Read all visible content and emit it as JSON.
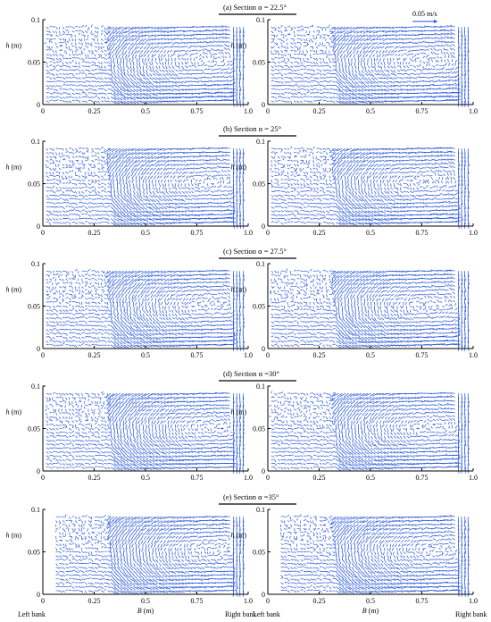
{
  "figure": {
    "scale_label": "0.05 m/s",
    "bottom_labels": {
      "left_bank_1": "Left bank",
      "right_bank_1": "Right bank",
      "left_bank_2": "Left bank",
      "right_bank_2": "Right bank"
    },
    "colors": {
      "vector": "#1f4fd8",
      "axis": "#000000"
    }
  },
  "chart_data": [
    {
      "type": "vector-field",
      "panel": "(a)",
      "title": "(a)  Section  α = 22.5°",
      "xlabel": "",
      "ylabel": "h (m)",
      "xlim": [
        0,
        1.0
      ],
      "ylim": [
        0,
        0.1
      ],
      "xticks": [
        "0",
        "0.25",
        "0.5",
        "0.75",
        "1.0"
      ],
      "yticks": [
        "0",
        "0.05",
        "0.1"
      ],
      "subplots": 2
    },
    {
      "type": "vector-field",
      "panel": "(b)",
      "title": "(b)  Section  α = 25°",
      "xlabel": "",
      "ylabel": "h (m)",
      "xlim": [
        0,
        1.0
      ],
      "ylim": [
        0,
        0.1
      ],
      "xticks": [
        "0",
        "0.25",
        "0.5",
        "0.75",
        "1.0"
      ],
      "yticks": [
        "0",
        "0.05",
        "0.1"
      ],
      "subplots": 2
    },
    {
      "type": "vector-field",
      "panel": "(c)",
      "title": "(c)  Section  α = 27.5°",
      "xlabel": "",
      "ylabel": "h (m)",
      "xlim": [
        0,
        1.0
      ],
      "ylim": [
        0,
        0.1
      ],
      "xticks": [
        "0",
        "0.25",
        "0.5",
        "0.75",
        "1.0"
      ],
      "yticks": [
        "0",
        "0.05",
        "0.1"
      ],
      "subplots": 2
    },
    {
      "type": "vector-field",
      "panel": "(d)",
      "title": "(d)  Section  α =30°",
      "xlabel": "",
      "ylabel": "h (m)",
      "xlim": [
        0,
        1.0
      ],
      "ylim": [
        0,
        0.1
      ],
      "xticks": [
        "0",
        "0.25",
        "0.5",
        "0.75",
        "1.0"
      ],
      "yticks": [
        "0",
        "0.05",
        "0.1"
      ],
      "subplots": 2
    },
    {
      "type": "vector-field",
      "panel": "(e)",
      "title": "(e)  Section  α =35°",
      "xlabel": "B (m)",
      "ylabel": "h (m)",
      "xlim": [
        0,
        1.0
      ],
      "ylim": [
        0,
        0.1
      ],
      "xticks": [
        "0",
        "0.25",
        "0.5",
        "0.75",
        "1.0"
      ],
      "yticks": [
        "0",
        "0.05",
        "0.1"
      ],
      "subplots": 2
    }
  ]
}
